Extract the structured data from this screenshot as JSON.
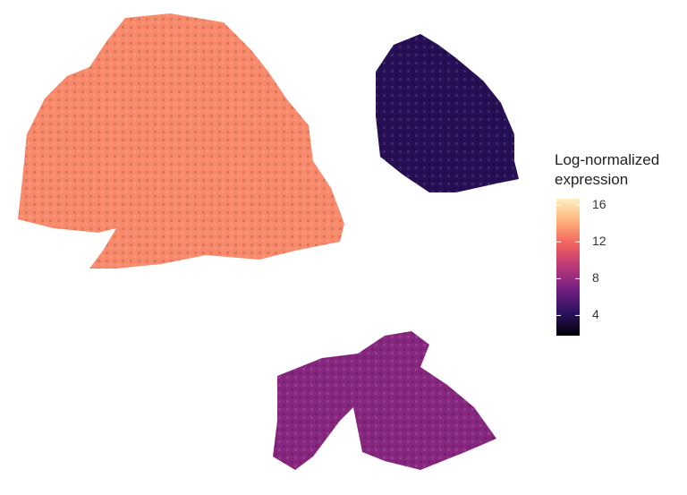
{
  "chart_data": {
    "type": "spatial",
    "legend_title": "Log-normalized expression",
    "values": [
      13,
      4,
      7.5
    ],
    "clim": [
      1.8,
      16.7
    ],
    "cticks": [
      4,
      8,
      12,
      16
    ],
    "colormap": [
      "#000004",
      "#2c115f",
      "#721f81",
      "#b73779",
      "#f1605d",
      "#feb078",
      "#fcf0c0"
    ]
  }
}
